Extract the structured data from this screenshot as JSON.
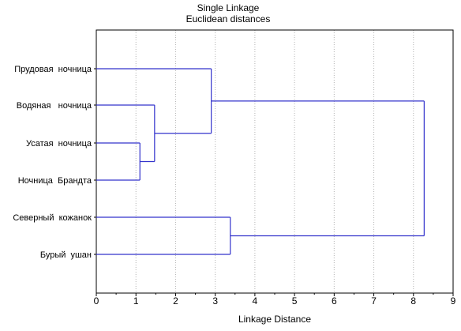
{
  "chart_data": {
    "type": "dendrogram",
    "title": "Single Linkage",
    "subtitle": "Euclidean distances",
    "xlabel": "Linkage Distance",
    "xlim": [
      0,
      9
    ],
    "x_ticks": [
      0,
      1,
      2,
      3,
      4,
      5,
      6,
      7,
      8,
      9
    ],
    "leaves": [
      "Прудовая  ночница",
      "Водяная   ночница",
      "Усатая  ночница",
      "Ночница  Брандта",
      "Северный  кожанок",
      "Бурый  ушан"
    ],
    "merges": [
      {
        "id": "m1",
        "left": "leaf:2",
        "right": "leaf:3",
        "distance": 1.1
      },
      {
        "id": "m2",
        "left": "leaf:1",
        "right": "node:m1",
        "distance": 1.47
      },
      {
        "id": "m3",
        "left": "leaf:0",
        "right": "node:m2",
        "distance": 2.9
      },
      {
        "id": "m4",
        "left": "leaf:4",
        "right": "leaf:5",
        "distance": 3.38
      },
      {
        "id": "m5",
        "left": "node:m3",
        "right": "node:m4",
        "distance": 8.27
      }
    ],
    "grid": {
      "vertical": true,
      "style": "dotted"
    },
    "line_color": "#3333cc",
    "grid_color": "#b4b4b4"
  }
}
